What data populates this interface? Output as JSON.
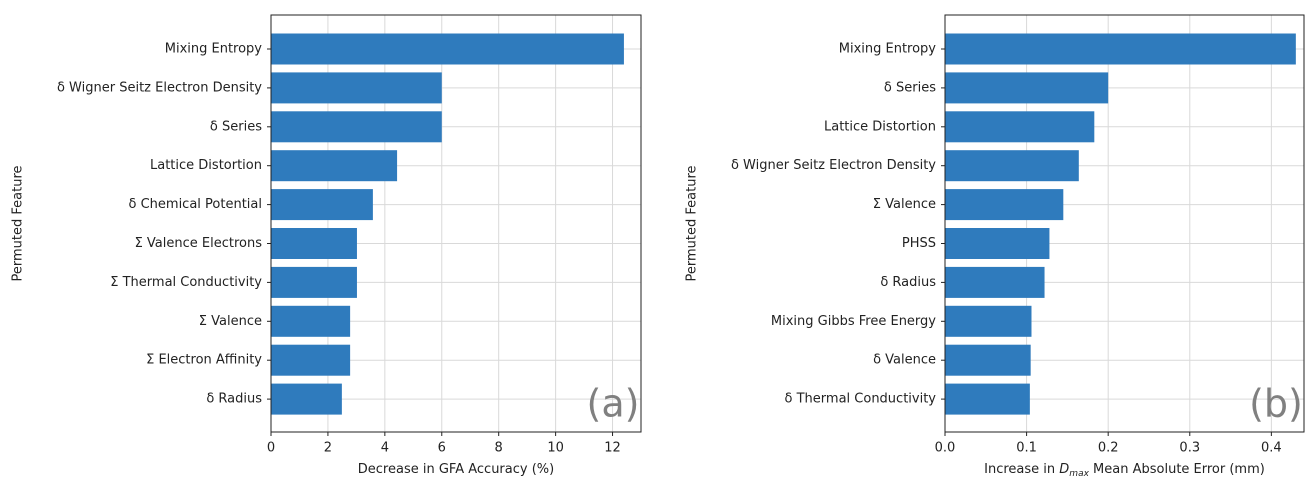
{
  "chart_data": [
    {
      "type": "barh",
      "categories": [
        "Mixing Entropy",
        "δ Wigner Seitz Electron Density",
        "δ Series",
        "Lattice Distortion",
        "δ Chemical Potential",
        "Σ Valence Electrons",
        "Σ Thermal Conductivity",
        "Σ Valence",
        "Σ Electron Affinity",
        "δ Radius"
      ],
      "values": [
        12.4,
        6.0,
        6.0,
        4.43,
        3.58,
        3.02,
        3.02,
        2.78,
        2.78,
        2.49
      ],
      "color": "#2f7bbd",
      "xlim": [
        0,
        13
      ],
      "xticks": [
        0,
        2,
        4,
        6,
        8,
        10,
        12
      ],
      "grid": true,
      "xlabel": [
        "Decrease in GFA Accuracy (%)"
      ],
      "ylabel": "Permuted Feature",
      "annotation": "(a)"
    },
    {
      "type": "barh",
      "categories": [
        "Mixing Entropy",
        "δ Series",
        "Lattice Distortion",
        "δ Wigner Seitz Electron Density",
        "Σ Valence",
        "PHSS",
        "δ Radius",
        "Mixing Gibbs Free Energy",
        "δ Valence",
        "δ Thermal Conductivity"
      ],
      "values": [
        0.43,
        0.2,
        0.183,
        0.164,
        0.145,
        0.128,
        0.122,
        0.106,
        0.105,
        0.104
      ],
      "color": "#2f7bbd",
      "xlim": [
        0,
        0.44
      ],
      "xticks": [
        {
          "value": 0,
          "label": "0.0"
        },
        0.1,
        0.2,
        0.3,
        0.4
      ],
      "grid": true,
      "xlabel": [
        "Increase in ",
        "D",
        "max",
        " Mean Absolute Error (mm)"
      ],
      "ylabel": "Permuted Feature",
      "annotation": "(b)"
    }
  ]
}
